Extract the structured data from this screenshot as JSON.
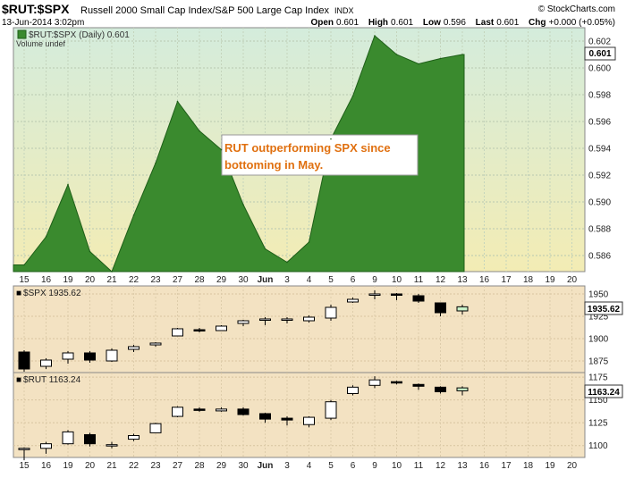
{
  "header": {
    "symbol": "$RUT:$SPX",
    "description": "Russell 2000 Small Cap Index/S&P 500 Large Cap Index",
    "exchange": "INDX",
    "copyright": "© StockCharts.com",
    "datetime": "13-Jun-2014 3:02pm",
    "open_label": "Open",
    "open": "0.601",
    "high_label": "High",
    "high": "0.601",
    "low_label": "Low",
    "low": "0.596",
    "last_label": "Last",
    "last": "0.601",
    "chg_label": "Chg",
    "chg": "+0.000 (+0.05%)"
  },
  "colors": {
    "area_fill": "#3a8a2e",
    "area_line": "#1e5e18",
    "main_bg_top": "#d4ecdc",
    "main_bg_bottom": "#f3ecb4",
    "candle_bg": "#f3e2c2",
    "annotation_text": "#e07010",
    "up_candle": "#ffffff",
    "down_candle": "#000000",
    "last_candle": "#c8f0c8"
  },
  "x_axis_labels": [
    "15",
    "16",
    "19",
    "20",
    "21",
    "22",
    "23",
    "27",
    "28",
    "29",
    "30",
    "Jun",
    "3",
    "4",
    "5",
    "6",
    "9",
    "10",
    "11",
    "12",
    "13",
    "16",
    "17",
    "18",
    "19",
    "20"
  ],
  "chart_data": [
    {
      "type": "area",
      "legend": "$RUT:$SPX (Daily) 0.601",
      "legend2": "Volume undef",
      "last_value_label": "0.601",
      "annotation": [
        "RUT outperforming SPX since",
        "bottoming in May."
      ],
      "y_ticks": [
        "0.586",
        "0.588",
        "0.590",
        "0.592",
        "0.594",
        "0.596",
        "0.598",
        "0.600",
        "0.602"
      ],
      "ylim": [
        0.5848,
        0.603
      ],
      "values": [
        0.5853,
        0.5874,
        0.5913,
        0.5863,
        0.5848,
        0.589,
        0.5929,
        0.5975,
        0.5953,
        0.5939,
        0.5898,
        0.5865,
        0.5855,
        0.587,
        0.5947,
        0.5979,
        0.6024,
        0.601,
        0.6003,
        0.6007,
        0.601
      ]
    },
    {
      "type": "candlestick",
      "legend": "$SPX 1935.62",
      "last_value_label": "1935.62",
      "y_ticks": [
        "1875",
        "1900",
        "1925",
        "1950"
      ],
      "ylim": [
        1862,
        1959
      ],
      "ohlc": [
        [
          1885,
          1887,
          1863,
          1866
        ],
        [
          1869,
          1878,
          1866,
          1876
        ],
        [
          1877,
          1886,
          1872,
          1884
        ],
        [
          1884,
          1886,
          1873,
          1876
        ],
        [
          1875,
          1889,
          1874,
          1887
        ],
        [
          1888,
          1893,
          1885,
          1891
        ],
        [
          1893,
          1896,
          1891,
          1895
        ],
        [
          1903,
          1912,
          1903,
          1911
        ],
        [
          1910,
          1912,
          1907,
          1909
        ],
        [
          1909,
          1915,
          1909,
          1914
        ],
        [
          1917,
          1921,
          1914,
          1920
        ],
        [
          1921,
          1924,
          1915,
          1922
        ],
        [
          1921,
          1924,
          1917,
          1922
        ],
        [
          1920,
          1926,
          1918,
          1924
        ],
        [
          1923,
          1938,
          1920,
          1935
        ],
        [
          1941,
          1946,
          1940,
          1944
        ],
        [
          1949,
          1954,
          1944,
          1950
        ],
        [
          1950,
          1951,
          1943,
          1949
        ],
        [
          1948,
          1950,
          1940,
          1942
        ],
        [
          1940,
          1940,
          1925,
          1929
        ],
        [
          1931,
          1938,
          1927,
          1935.62
        ]
      ]
    },
    {
      "type": "candlestick",
      "legend": "$RUT 1163.24",
      "last_value_label": "1163.24",
      "y_ticks": [
        "1100",
        "1125",
        "1150",
        "1175"
      ],
      "ylim": [
        1087,
        1180
      ],
      "ohlc": [
        [
          1097,
          1098,
          1084,
          1097
        ],
        [
          1097,
          1104,
          1091,
          1102
        ],
        [
          1102,
          1117,
          1101,
          1115
        ],
        [
          1112,
          1114,
          1099,
          1102
        ],
        [
          1101,
          1104,
          1097,
          1101
        ],
        [
          1107,
          1113,
          1105,
          1111
        ],
        [
          1114,
          1125,
          1114,
          1124
        ],
        [
          1132,
          1143,
          1131,
          1142
        ],
        [
          1140,
          1142,
          1137,
          1139
        ],
        [
          1138,
          1142,
          1137,
          1140
        ],
        [
          1140,
          1142,
          1133,
          1134
        ],
        [
          1135,
          1136,
          1125,
          1129
        ],
        [
          1130,
          1132,
          1122,
          1128
        ],
        [
          1123,
          1132,
          1120,
          1131
        ],
        [
          1130,
          1150,
          1128,
          1148
        ],
        [
          1157,
          1166,
          1155,
          1164
        ],
        [
          1166,
          1176,
          1163,
          1172
        ],
        [
          1170,
          1171,
          1167,
          1169
        ],
        [
          1167,
          1168,
          1161,
          1165
        ],
        [
          1164,
          1165,
          1157,
          1159
        ],
        [
          1160,
          1165,
          1155,
          1163.24
        ]
      ]
    }
  ]
}
